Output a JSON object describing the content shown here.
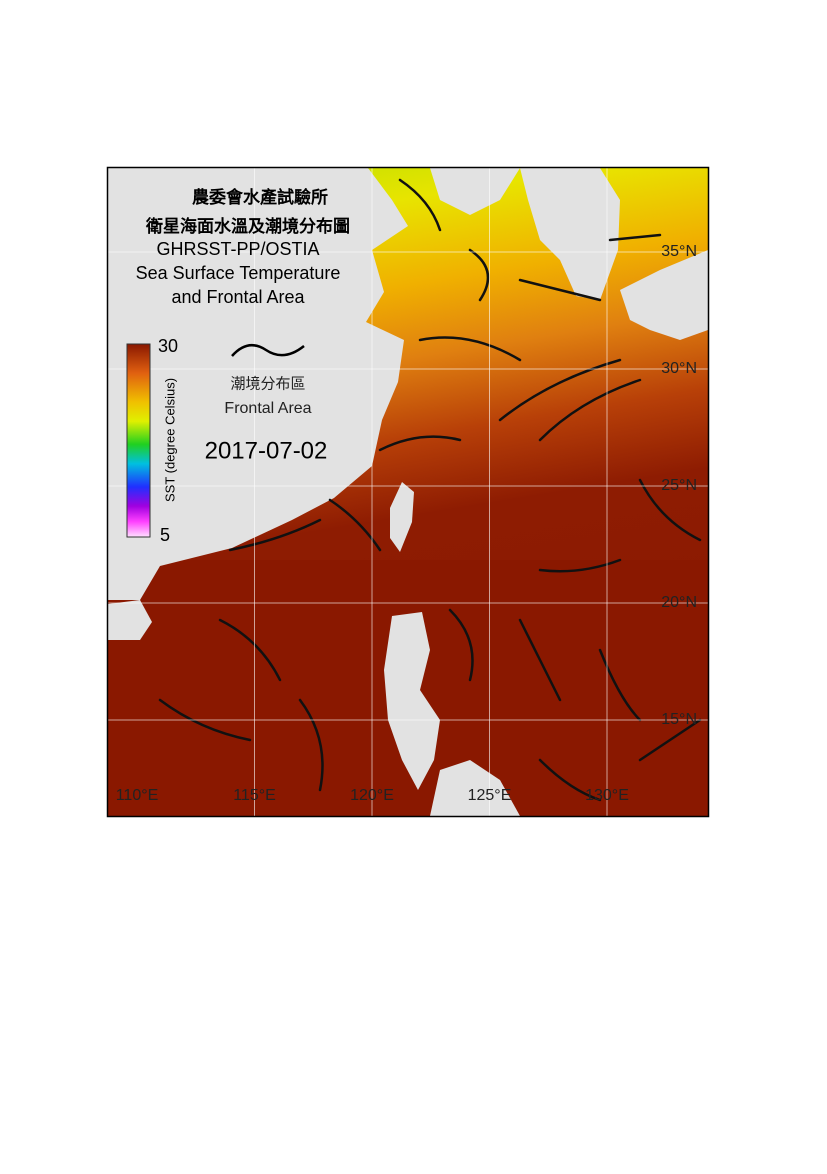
{
  "header": {
    "title_zh_1": "農委會水產試驗所",
    "title_zh_2": "衛星海面水溫及潮境分布圖",
    "source": "GHRSST-PP/OSTIA",
    "title_en_1": "Sea Surface Temperature",
    "title_en_2": "and Frontal Area"
  },
  "legend": {
    "label_zh": "潮境分布區",
    "label_en": "Frontal Area"
  },
  "date": "2017-07-02",
  "colorbar": {
    "label": "SST (degree Celsius)",
    "max": 30,
    "min": 5
  },
  "lon_labels": [
    "110°E",
    "115°E",
    "120°E",
    "125°E",
    "130°E"
  ],
  "lat_labels": [
    "35°N",
    "30°N",
    "25°N",
    "20°N",
    "15°N"
  ]
}
